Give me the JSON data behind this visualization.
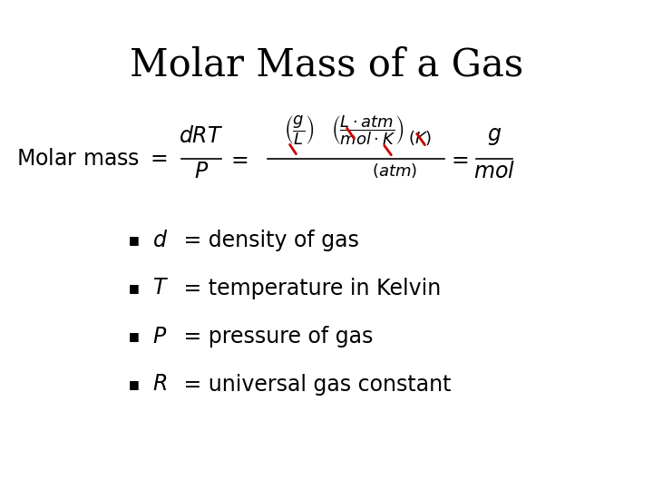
{
  "title": "Molar Mass of a Gas",
  "background_color": "#ffffff",
  "text_color": "#000000",
  "red_color": "#cc0000",
  "title_fontsize": 30,
  "formula_fontsize": 17,
  "bullet_fontsize": 17,
  "bullet_items": [
    [
      "d",
      " = density of gas"
    ],
    [
      "T",
      " = temperature in Kelvin"
    ],
    [
      "P",
      " = pressure of gas"
    ],
    [
      "R",
      " = universal gas constant"
    ]
  ]
}
